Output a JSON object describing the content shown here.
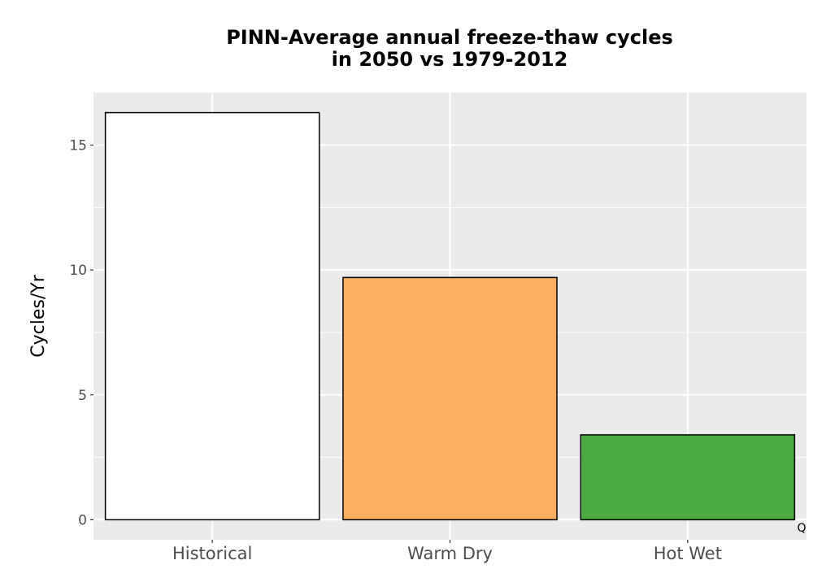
{
  "chart_data": {
    "type": "bar",
    "title_lines": [
      "PINN-Average annual freeze-thaw cycles",
      "in 2050 vs 1979-2012"
    ],
    "xlabel": "",
    "ylabel": "Cycles/Yr",
    "categories": [
      "Historical",
      "Warm Dry",
      "Hot Wet"
    ],
    "values": [
      16.3,
      9.7,
      3.4
    ],
    "bar_colors": [
      "#ffffff",
      "#fdae61",
      "#4dac3f"
    ],
    "bar_outline": "#000000",
    "ylim": [
      -0.8,
      17.1
    ],
    "y_ticks": [
      0,
      5,
      10,
      15
    ],
    "y_tick_labels": [
      "0",
      "5",
      "10",
      "15"
    ],
    "grid": true,
    "panel_background": "#ebebeb",
    "grid_color": "#ffffff",
    "legend": "none",
    "corner_mark": "Q"
  }
}
